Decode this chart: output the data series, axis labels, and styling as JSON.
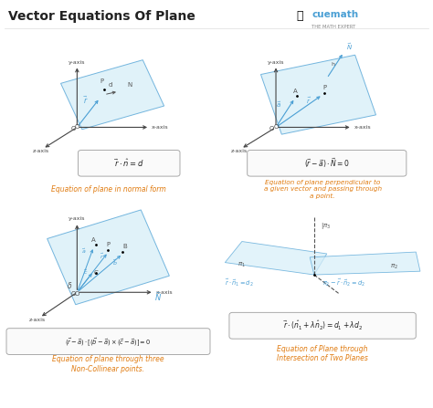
{
  "title": "Vector Equations Of Plane",
  "bg_color": "#ffffff",
  "title_color": "#222222",
  "title_fontsize": 10,
  "blue_color": "#4a9fd4",
  "light_blue_fill": "#d6eef8",
  "axis_color": "#444444",
  "label_color": "#555555",
  "orange_text": "#e07b10",
  "formula1": "$\\vec{r}\\cdot\\hat{n}=d$",
  "formula2": "$(\\vec{r}-\\vec{a})\\cdot\\vec{N}=0$",
  "formula3": "$(\\vec{r}-\\vec{a})\\cdot[(\\vec{b}-\\vec{a})\\times(\\vec{c}-\\vec{a})]=0$",
  "formula4": "$\\vec{r}\\cdot(\\hat{n}_1+\\lambda\\hat{n}_2)=d_1+\\lambda d_2$",
  "label1": "Equation of plane in normal form",
  "label2": "Equation of plane perpendicular to\na given vector and passing through\na point.",
  "label3": "Equation of plane through three\nNon-Collinear points.",
  "label4": "Equation of Plane through\nIntersection of Two Planes"
}
